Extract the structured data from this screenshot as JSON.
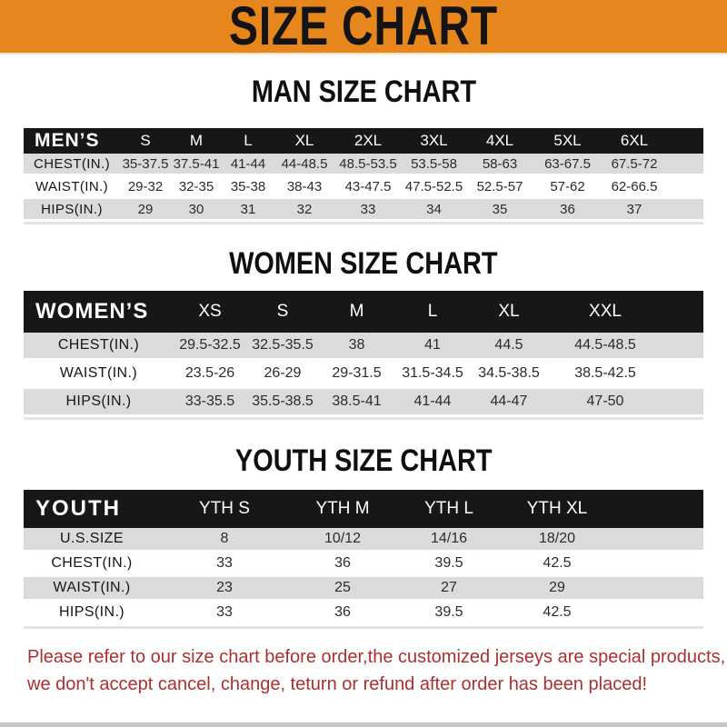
{
  "banner": {
    "title": "SIZE CHART"
  },
  "sections": {
    "men": {
      "heading": "MAN SIZE CHART",
      "corner_label": "MEN’S",
      "columns": [
        "S",
        "M",
        "L",
        "XL",
        "2XL",
        "3XL",
        "4XL",
        "5XL",
        "6XL",
        ""
      ],
      "rows": [
        {
          "label": "CHEST(IN.)",
          "values": [
            "35-37.5",
            "37.5-41",
            "41-44",
            "44-48.5",
            "48.5-53.5",
            "53.5-58",
            "58-63",
            "63-67.5",
            "67.5-72",
            ""
          ]
        },
        {
          "label": "WAIST(IN.)",
          "values": [
            "29-32",
            "32-35",
            "35-38",
            "38-43",
            "43-47.5",
            "47.5-52.5",
            "52.5-57",
            "57-62",
            "62-66.5",
            ""
          ]
        },
        {
          "label": "HIPS(IN.)",
          "values": [
            "29",
            "30",
            "31",
            "32",
            "33",
            "34",
            "35",
            "36",
            "37",
            ""
          ]
        }
      ]
    },
    "women": {
      "heading": "WOMEN SIZE CHART",
      "corner_label": "WOMEN’S",
      "columns": [
        "XS",
        "S",
        "M",
        "L",
        "XL",
        "XXL",
        ""
      ],
      "rows": [
        {
          "label": "CHEST(IN.)",
          "values": [
            "29.5-32.5",
            "32.5-35.5",
            "38",
            "41",
            "44.5",
            "44.5-48.5",
            ""
          ]
        },
        {
          "label": "WAIST(IN.)",
          "values": [
            "23.5-26",
            "26-29",
            "29-31.5",
            "31.5-34.5",
            "34.5-38.5",
            "38.5-42.5",
            ""
          ]
        },
        {
          "label": "HIPS(IN.)",
          "values": [
            "33-35.5",
            "35.5-38.5",
            "38.5-41",
            "41-44",
            "44-47",
            "47-50",
            ""
          ]
        }
      ]
    },
    "youth": {
      "heading": "YOUTH SIZE CHART",
      "corner_label": "YOUTH",
      "columns": [
        "YTH S",
        "YTH M",
        "YTH L",
        "YTH XL",
        ""
      ],
      "rows": [
        {
          "label": "U.S.SIZE",
          "values": [
            "8",
            "10/12",
            "14/16",
            "18/20",
            ""
          ]
        },
        {
          "label": "CHEST(IN.)",
          "values": [
            "33",
            "36",
            "39.5",
            "42.5",
            ""
          ]
        },
        {
          "label": "WAIST(IN.)",
          "values": [
            "23",
            "25",
            "27",
            "29",
            ""
          ]
        },
        {
          "label": "HIPS(IN.)",
          "values": [
            "33",
            "36",
            "39.5",
            "42.5",
            ""
          ]
        }
      ]
    }
  },
  "notice": {
    "line1": "Please refer to our size chart before order,the customized jerseys are special products,",
    "line2": "we don't accept cancel, change, teturn or refund after order has been placed!"
  },
  "colors": {
    "banner_orange": "#E8861E",
    "header_black": "#171717",
    "row_gray": "#DBDBDB",
    "notice_red": "#AE2F2F"
  }
}
